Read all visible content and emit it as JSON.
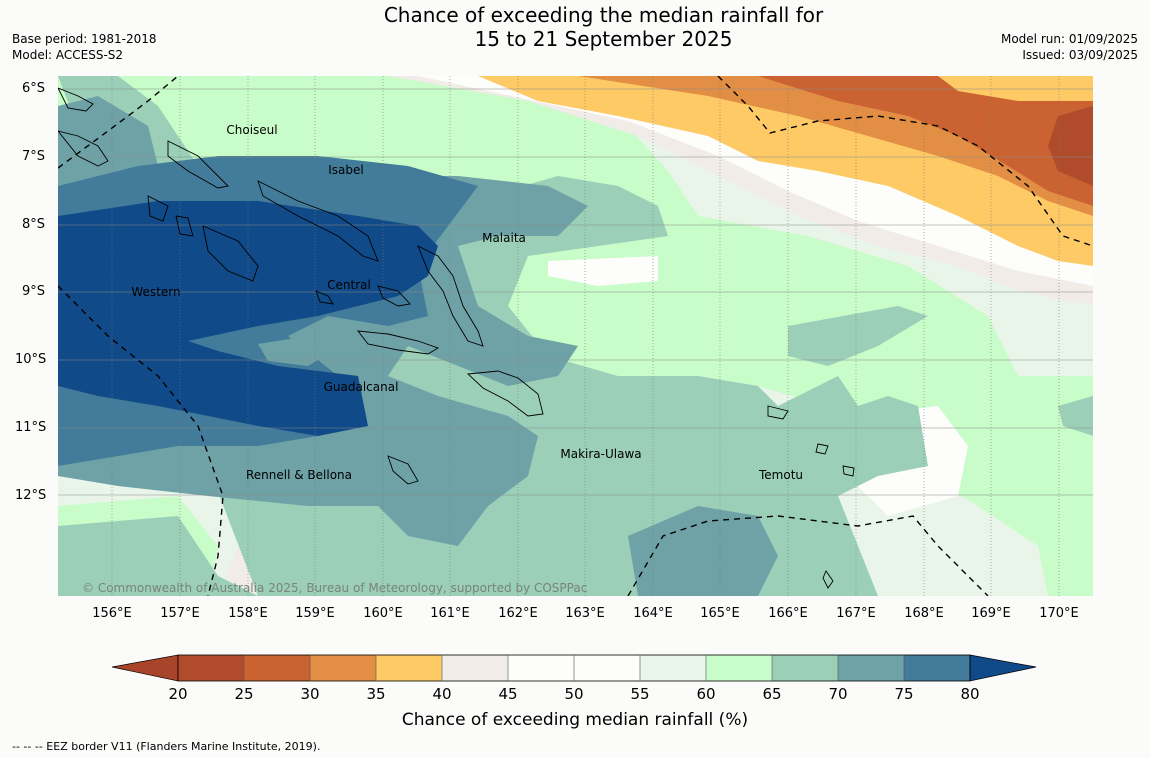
{
  "title_line1": "Chance of exceeding the median rainfall for",
  "title_line2": "15 to 21 September 2025",
  "base_period": "Base period: 1981-2018",
  "model": "Model: ACCESS-S2",
  "model_run": "Model run: 01/09/2025",
  "issued": "Issued: 03/09/2025",
  "copyright": "© Commonwealth of Australia 2025, Bureau of Meteorology, supported by COSPPac",
  "lat_labels": [
    "6°S",
    "7°S",
    "8°S",
    "9°S",
    "10°S",
    "11°S",
    "12°S"
  ],
  "lon_labels": [
    "156°E",
    "157°E",
    "158°E",
    "159°E",
    "160°E",
    "161°E",
    "162°E",
    "163°E",
    "164°E",
    "165°E",
    "166°E",
    "167°E",
    "168°E",
    "169°E",
    "170°E"
  ],
  "places": [
    "Choiseul",
    "Isabel",
    "Malaita",
    "Western",
    "Central",
    "Guadalcanal",
    "Makira-Ulawa",
    "Rennell & Bellona",
    "Temotu"
  ],
  "colorbar": {
    "label": "Chance of exceeding median rainfall (%)",
    "ticks": [
      "20",
      "25",
      "30",
      "35",
      "40",
      "45",
      "50",
      "55",
      "60",
      "65",
      "70",
      "75",
      "80"
    ],
    "colors": [
      "#a8442a",
      "#b04c2c",
      "#cb6231",
      "#e28f45",
      "#fdca66",
      "#f1ece8",
      "#fdfdfb",
      "#fdfdfb",
      "#eaf5ea",
      "#c8fcc8",
      "#9bcfb8",
      "#6ea2a6",
      "#437c9a",
      "#104a88"
    ]
  },
  "eez_note": "--  --  -- EEZ border V11 (Flanders Marine Institute, 2019)."
}
